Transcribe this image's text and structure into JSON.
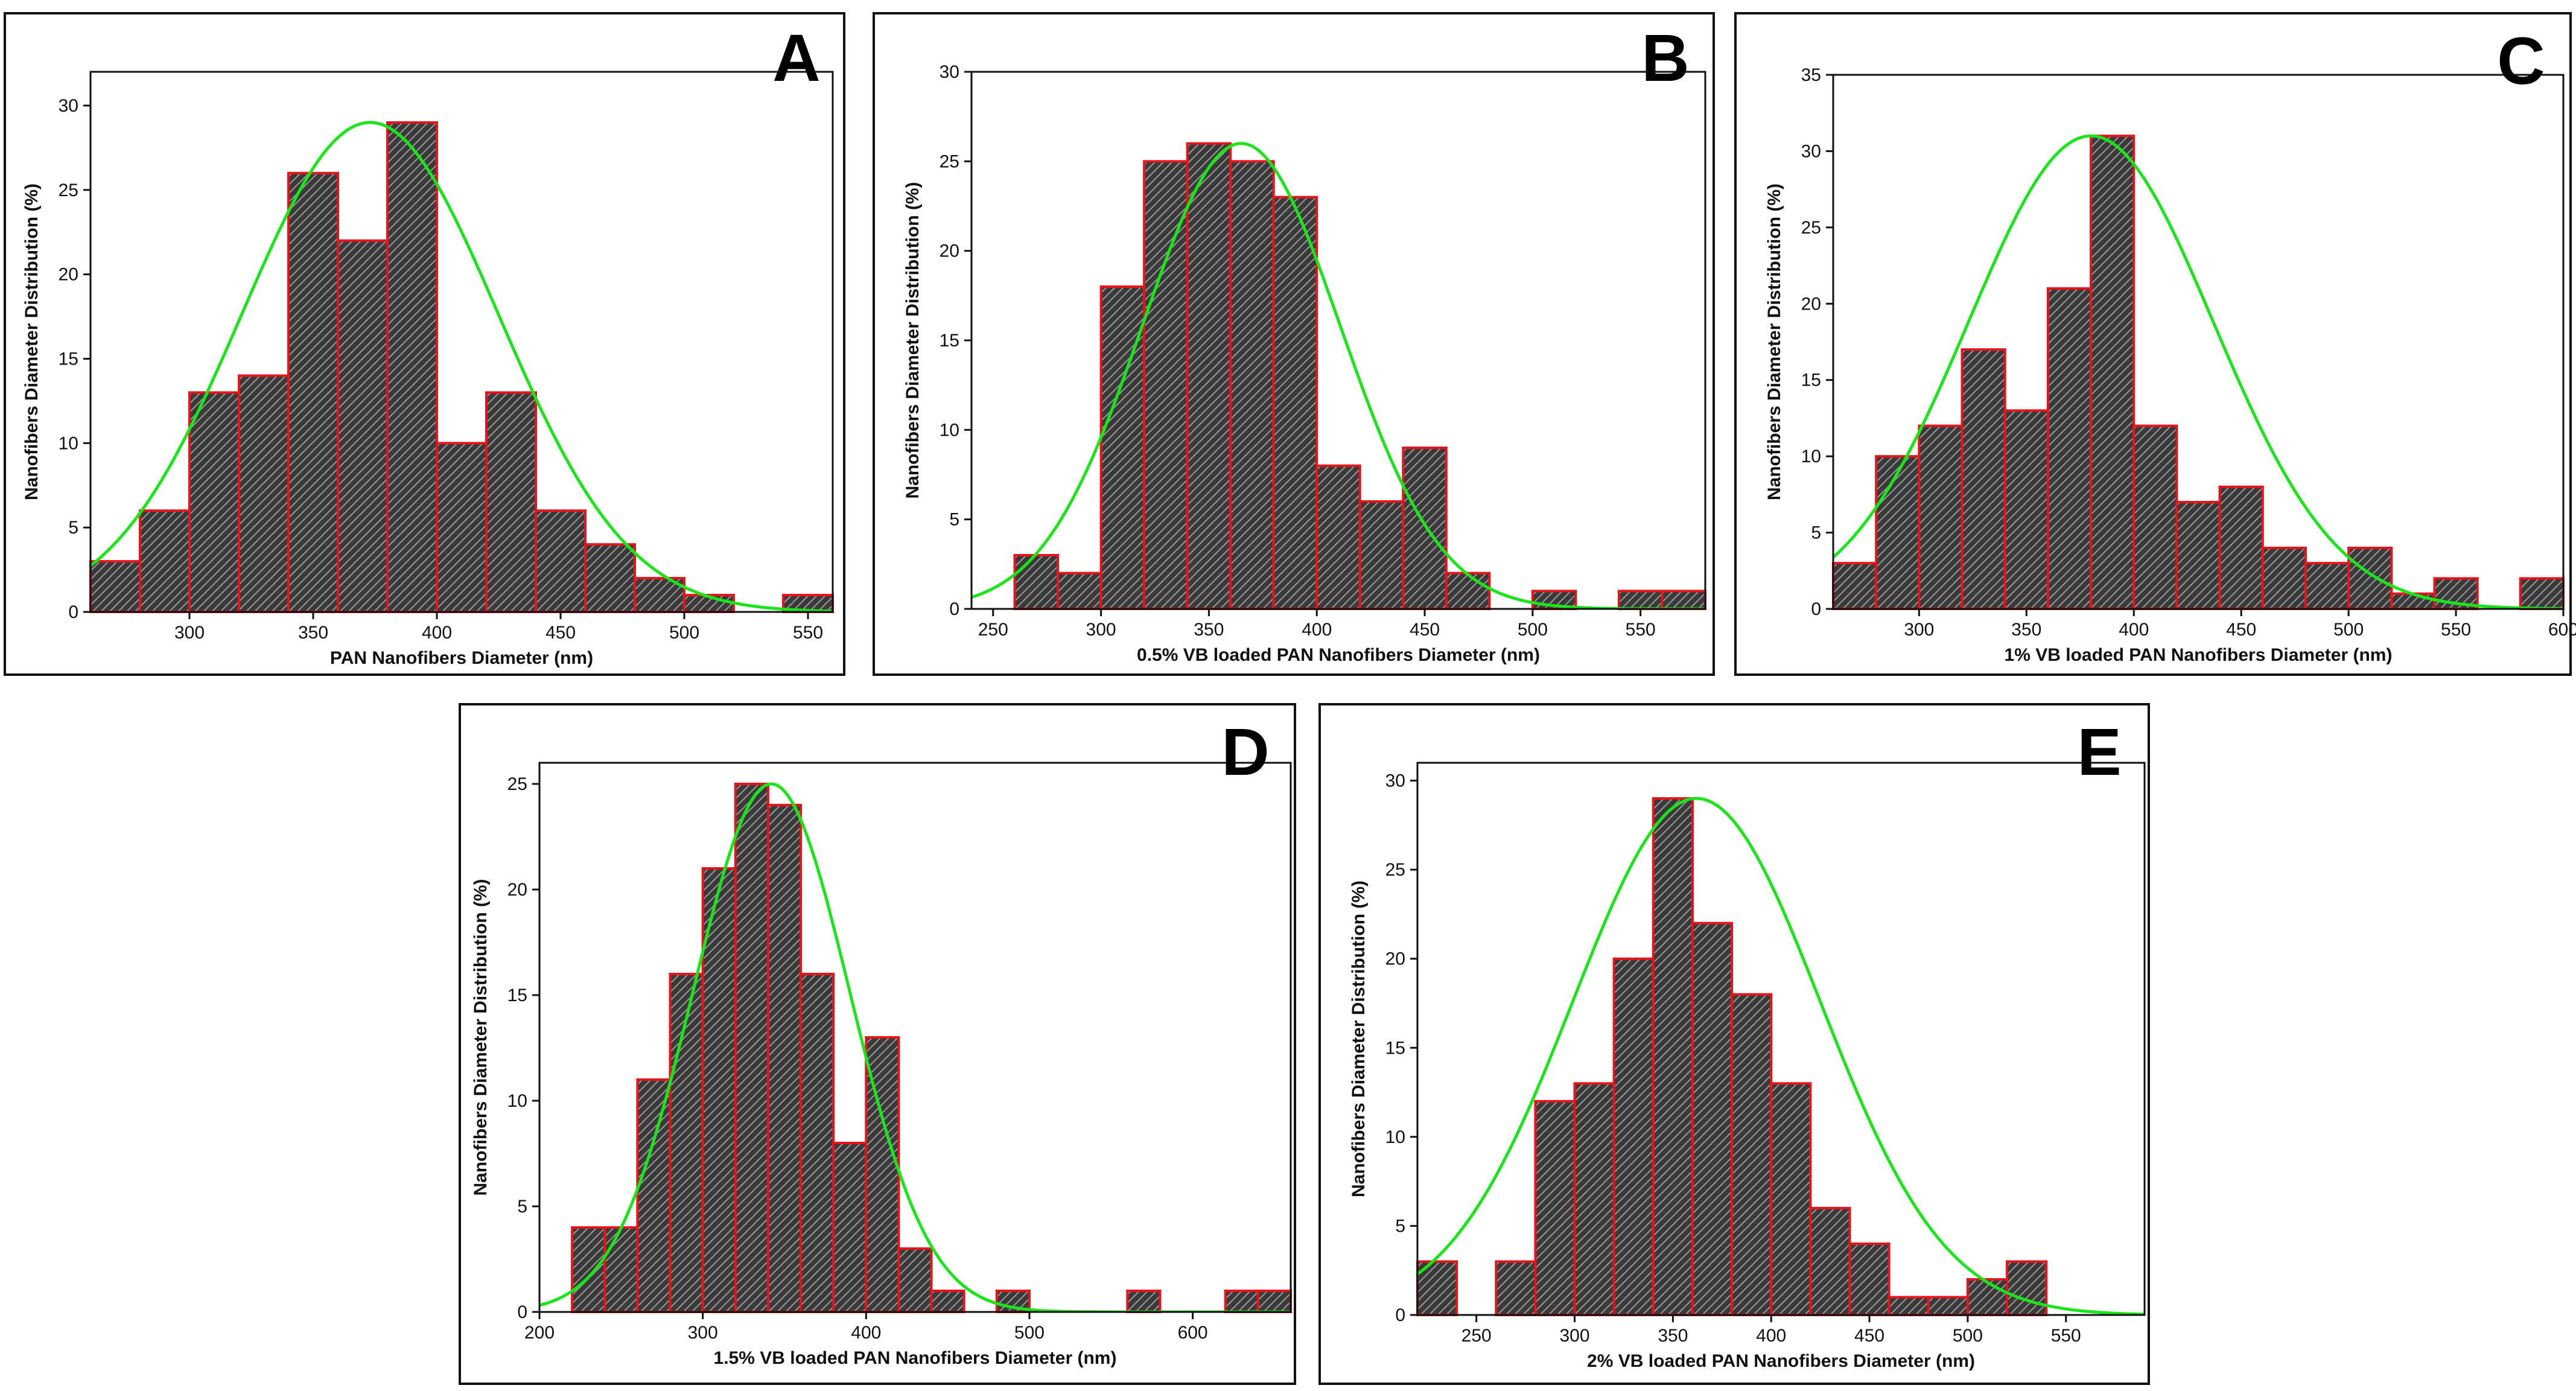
{
  "colors": {
    "bar_fill": "#3a3a3a",
    "bar_hatch": "#9a9a9a",
    "bar_edge": "#e8141c",
    "fit_curve": "#19e619",
    "axis": "#111111"
  },
  "chart_data": [
    {
      "panel": "A",
      "type": "bar",
      "xlabel": "PAN Nanofibers Diameter (nm)",
      "ylabel": "Nanofibers Diameter Distribution (%)",
      "xlim": [
        260,
        560
      ],
      "ylim": [
        0,
        32
      ],
      "xticks": [
        300,
        350,
        400,
        450,
        500,
        550
      ],
      "yticks": [
        0,
        5,
        10,
        15,
        20,
        25,
        30
      ],
      "bin_start": 260,
      "bin_width": 20,
      "values": [
        3,
        6,
        13,
        14,
        26,
        22,
        29,
        10,
        13,
        6,
        4,
        2,
        1,
        0,
        1
      ],
      "fit": {
        "type": "gaussian",
        "mean": 373,
        "sd": 52,
        "peak": 29
      }
    },
    {
      "panel": "B",
      "type": "bar",
      "xlabel": "0.5% VB loaded PAN Nanofibers Diameter (nm)",
      "ylabel": "Nanofibers Diameter Distribution (%)",
      "xlim": [
        240,
        580
      ],
      "ylim": [
        0,
        30
      ],
      "xticks": [
        250,
        300,
        350,
        400,
        450,
        500,
        550
      ],
      "yticks": [
        0,
        5,
        10,
        15,
        20,
        25,
        30
      ],
      "bin_start": 260,
      "bin_width": 20,
      "values": [
        3,
        2,
        18,
        25,
        26,
        25,
        23,
        8,
        6,
        9,
        2,
        0,
        1,
        0,
        1,
        1
      ],
      "fit": {
        "type": "gaussian",
        "mean": 365,
        "sd": 46,
        "peak": 26
      }
    },
    {
      "panel": "C",
      "type": "bar",
      "xlabel": "1% VB loaded PAN Nanofibers Diameter (nm)",
      "ylabel": "Nanofibers Diameter Distribution (%)",
      "xlim": [
        260,
        600
      ],
      "ylim": [
        0,
        35
      ],
      "xticks": [
        300,
        350,
        400,
        450,
        500,
        550,
        600
      ],
      "yticks": [
        0,
        5,
        10,
        15,
        20,
        25,
        30,
        35
      ],
      "bin_start": 260,
      "bin_width": 20,
      "values": [
        3,
        10,
        12,
        17,
        13,
        21,
        31,
        12,
        7,
        8,
        4,
        3,
        4,
        1,
        2,
        0,
        2
      ],
      "fit": {
        "type": "gaussian",
        "mean": 380,
        "sd": 57,
        "peak": 31
      }
    },
    {
      "panel": "D",
      "type": "bar",
      "xlabel": "1.5% VB loaded PAN Nanofibers Diameter (nm)",
      "ylabel": "Nanofibers Diameter Distribution (%)",
      "xlim": [
        200,
        660
      ],
      "ylim": [
        0,
        26
      ],
      "xticks": [
        200,
        300,
        400,
        500,
        600
      ],
      "yticks": [
        0,
        5,
        10,
        15,
        20,
        25
      ],
      "bin_start": 220,
      "bin_width": 20,
      "values": [
        4,
        4,
        11,
        16,
        21,
        25,
        24,
        16,
        8,
        13,
        3,
        1,
        0,
        1,
        0,
        0,
        0,
        1,
        0,
        0,
        1,
        1
      ],
      "fit": {
        "type": "gaussian",
        "mean": 342,
        "sd": 48,
        "peak": 25
      }
    },
    {
      "panel": "E",
      "type": "bar",
      "xlabel": "2% VB loaded PAN Nanofibers Diameter (nm)",
      "ylabel": "Nanofibers Diameter Distribution (%)",
      "xlim": [
        220,
        590
      ],
      "ylim": [
        0,
        31
      ],
      "xticks": [
        250,
        300,
        350,
        400,
        450,
        500,
        550
      ],
      "yticks": [
        0,
        5,
        10,
        15,
        20,
        25,
        30
      ],
      "bin_start": 220,
      "bin_width": 20,
      "values": [
        3,
        0,
        3,
        12,
        13,
        20,
        29,
        22,
        18,
        13,
        6,
        4,
        1,
        1,
        2,
        3
      ],
      "fit": {
        "type": "gaussian",
        "mean": 362,
        "sd": 63,
        "peak": 29
      }
    }
  ]
}
